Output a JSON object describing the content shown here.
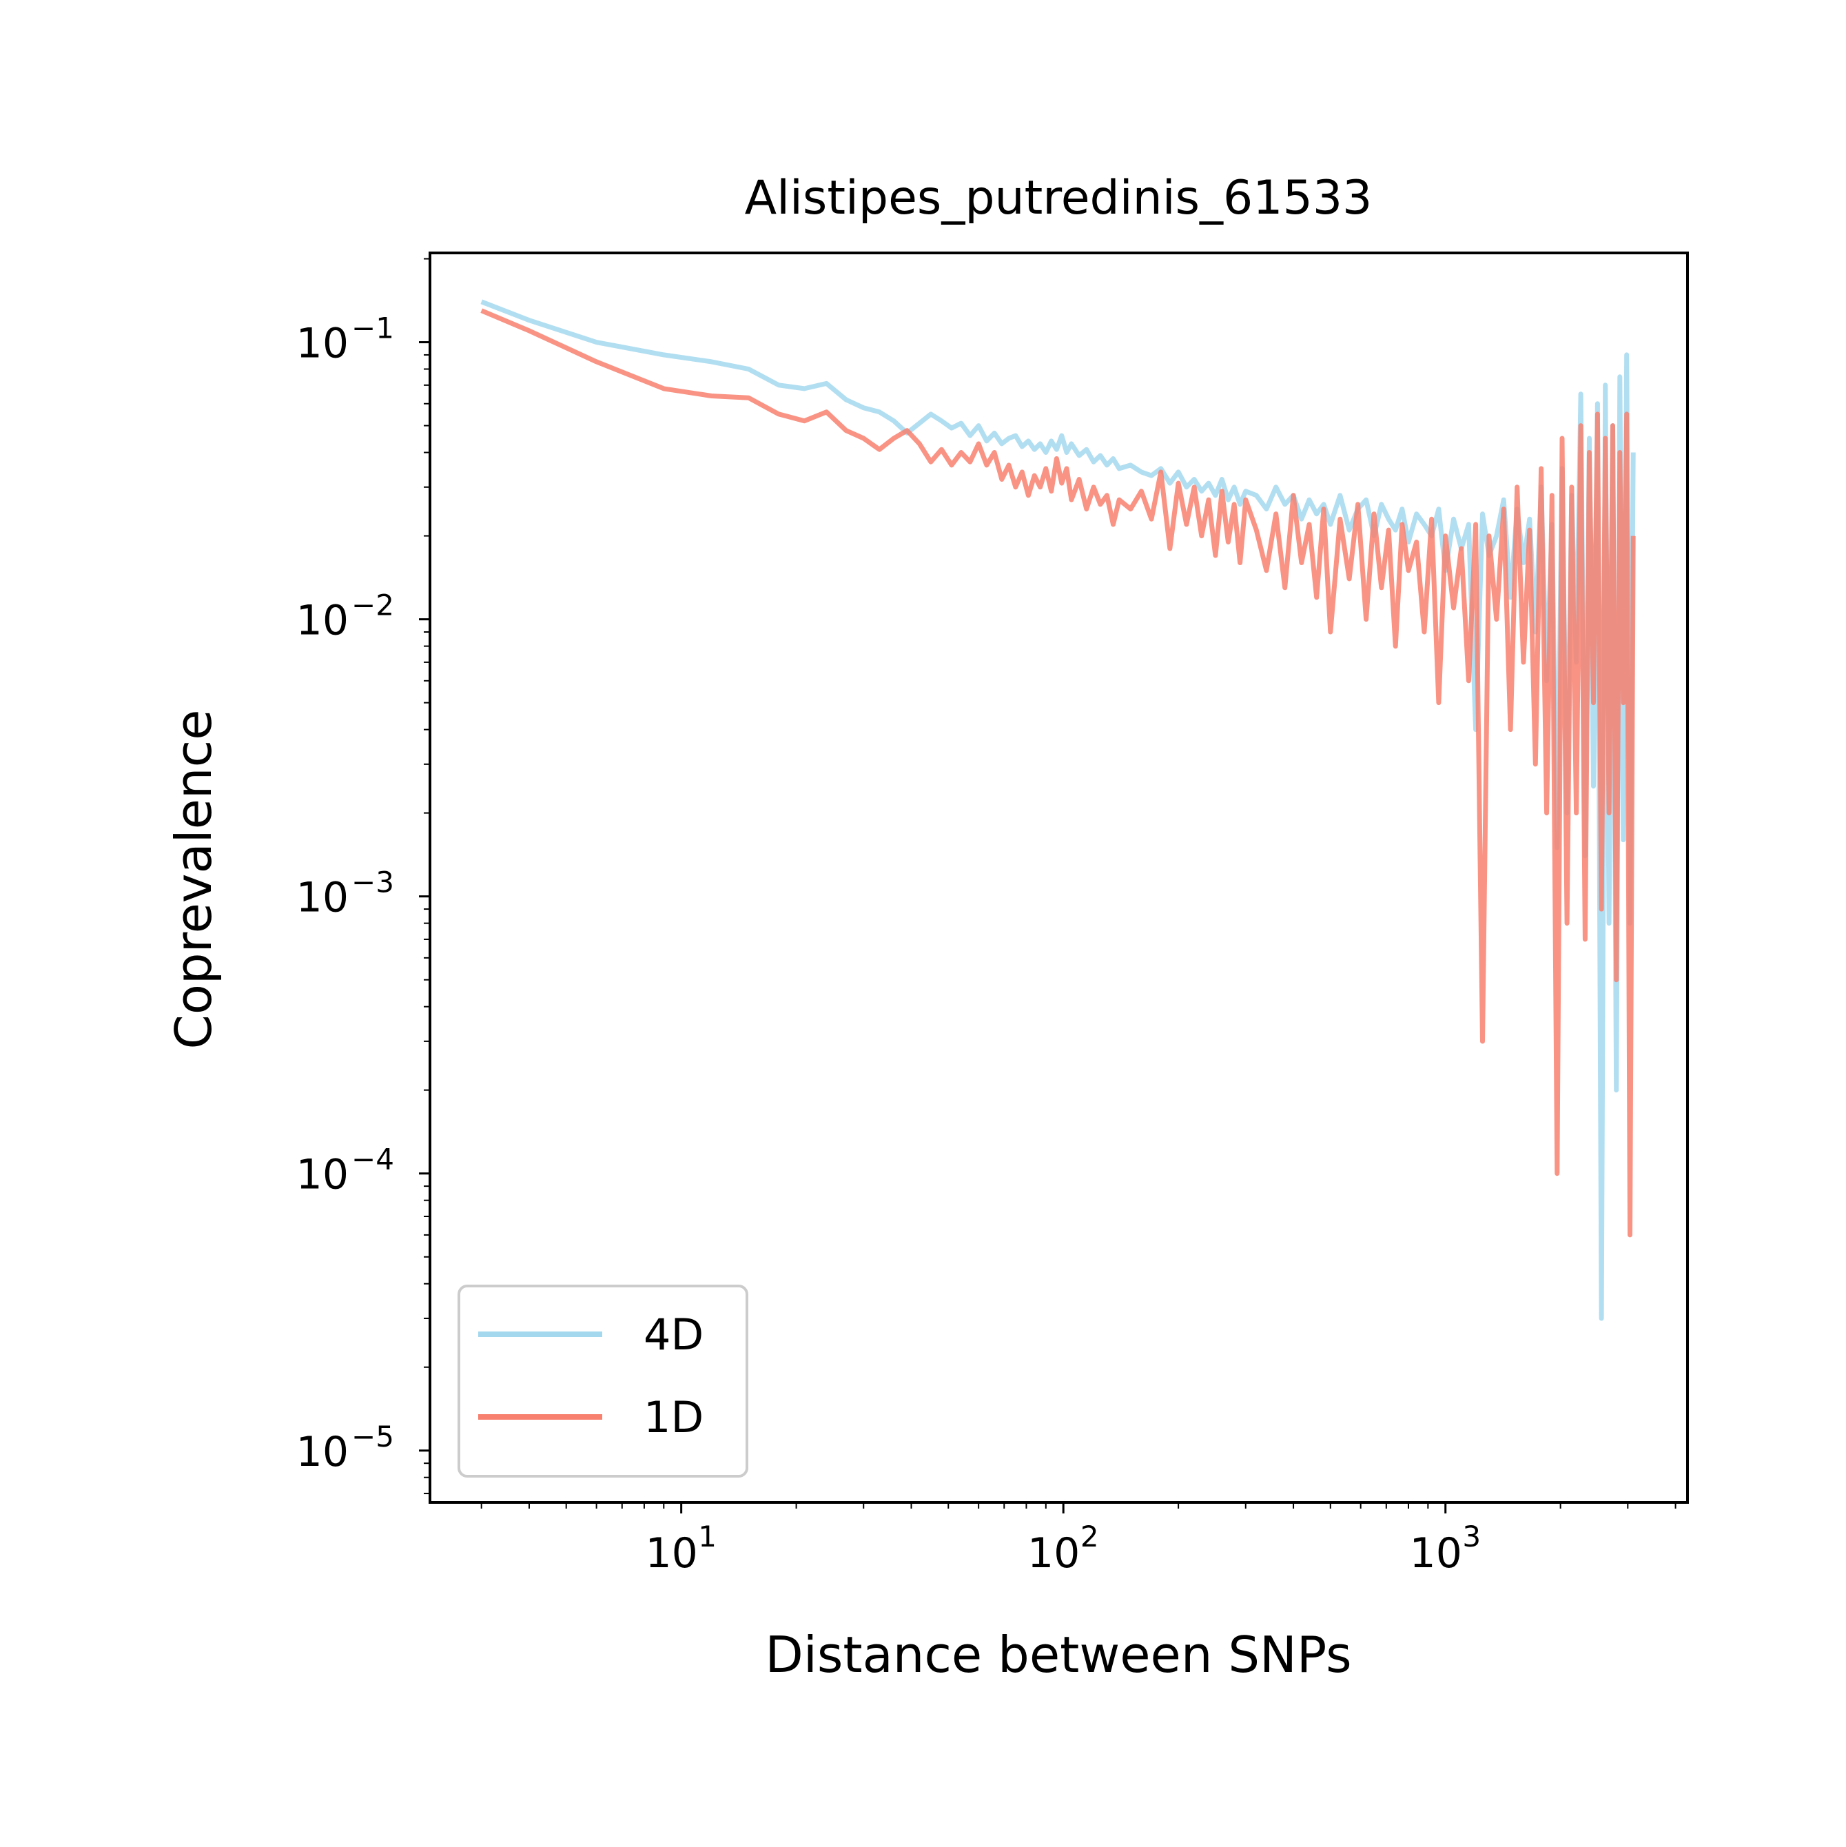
{
  "chart_data": {
    "type": "line",
    "title": "Alistipes_putredinis_61533",
    "xlabel": "Distance between SNPs",
    "ylabel": "Coprevalence",
    "xscale": "log",
    "yscale": "log",
    "xlim": [
      2.2,
      4300
    ],
    "ylim": [
      6.5e-06,
      0.21
    ],
    "x_ticks": [
      {
        "value": 10,
        "base": "10",
        "exp": "1"
      },
      {
        "value": 100,
        "base": "10",
        "exp": "2"
      },
      {
        "value": 1000,
        "base": "10",
        "exp": "3"
      }
    ],
    "y_ticks": [
      {
        "value": 0.1,
        "base": "10",
        "exp": "−1"
      },
      {
        "value": 0.01,
        "base": "10",
        "exp": "−2"
      },
      {
        "value": 0.001,
        "base": "10",
        "exp": "−3"
      },
      {
        "value": 0.0001,
        "base": "10",
        "exp": "−4"
      },
      {
        "value": 1e-05,
        "base": "10",
        "exp": "−5"
      }
    ],
    "grid": false,
    "legend_position": "lower-left",
    "series": [
      {
        "name": "4D",
        "color": "#a3d8ee",
        "x": [
          3,
          4,
          6,
          9,
          12,
          15,
          18,
          21,
          24,
          27,
          30,
          33,
          36,
          39,
          42,
          45,
          48,
          51,
          54,
          57,
          60,
          63,
          66,
          69,
          72,
          75,
          78,
          81,
          84,
          87,
          90,
          93,
          96,
          99,
          102,
          105,
          110,
          115,
          120,
          125,
          130,
          135,
          140,
          150,
          160,
          170,
          180,
          190,
          200,
          210,
          220,
          230,
          240,
          250,
          260,
          270,
          280,
          290,
          300,
          320,
          340,
          360,
          380,
          400,
          420,
          440,
          460,
          480,
          500,
          530,
          560,
          590,
          620,
          650,
          680,
          710,
          740,
          770,
          800,
          840,
          880,
          920,
          960,
          1000,
          1050,
          1100,
          1150,
          1200,
          1250,
          1300,
          1360,
          1420,
          1480,
          1540,
          1600,
          1660,
          1720,
          1780,
          1840,
          1900,
          1960,
          2020,
          2080,
          2140,
          2200,
          2260,
          2320,
          2380,
          2440,
          2500,
          2560,
          2620,
          2680,
          2740,
          2800,
          2860,
          2920,
          2980,
          3040,
          3100
        ],
        "y": [
          0.14,
          0.12,
          0.1,
          0.09,
          0.085,
          0.08,
          0.07,
          0.068,
          0.071,
          0.062,
          0.058,
          0.056,
          0.052,
          0.047,
          0.051,
          0.055,
          0.052,
          0.049,
          0.051,
          0.046,
          0.05,
          0.044,
          0.047,
          0.043,
          0.045,
          0.046,
          0.042,
          0.044,
          0.041,
          0.043,
          0.04,
          0.044,
          0.041,
          0.046,
          0.04,
          0.043,
          0.039,
          0.041,
          0.037,
          0.039,
          0.036,
          0.038,
          0.035,
          0.036,
          0.034,
          0.033,
          0.035,
          0.031,
          0.034,
          0.03,
          0.032,
          0.029,
          0.031,
          0.028,
          0.032,
          0.027,
          0.03,
          0.026,
          0.029,
          0.028,
          0.025,
          0.03,
          0.026,
          0.028,
          0.023,
          0.027,
          0.024,
          0.026,
          0.022,
          0.028,
          0.021,
          0.025,
          0.027,
          0.02,
          0.026,
          0.023,
          0.021,
          0.025,
          0.019,
          0.024,
          0.022,
          0.02,
          0.025,
          0.015,
          0.023,
          0.018,
          0.022,
          0.004,
          0.024,
          0.017,
          0.02,
          0.027,
          0.012,
          0.025,
          0.016,
          0.023,
          0.009,
          0.03,
          0.006,
          0.022,
          0.0015,
          0.035,
          0.002,
          0.028,
          0.007,
          0.065,
          0.0014,
          0.045,
          0.0025,
          0.06,
          3e-05,
          0.07,
          0.0008,
          0.05,
          0.0002,
          0.075,
          0.0016,
          0.09,
          0.0008,
          0.04
        ]
      },
      {
        "name": "1D",
        "color": "#f8806e",
        "x": [
          3,
          4,
          6,
          9,
          12,
          15,
          18,
          21,
          24,
          27,
          30,
          33,
          36,
          39,
          42,
          45,
          48,
          51,
          54,
          57,
          60,
          63,
          66,
          69,
          72,
          75,
          78,
          81,
          84,
          87,
          90,
          93,
          96,
          99,
          102,
          105,
          110,
          115,
          120,
          125,
          130,
          135,
          140,
          150,
          160,
          170,
          180,
          190,
          200,
          210,
          220,
          230,
          240,
          250,
          260,
          270,
          280,
          290,
          300,
          320,
          340,
          360,
          380,
          400,
          420,
          440,
          460,
          480,
          500,
          530,
          560,
          590,
          620,
          650,
          680,
          710,
          740,
          770,
          800,
          840,
          880,
          920,
          960,
          1000,
          1050,
          1100,
          1150,
          1200,
          1250,
          1300,
          1360,
          1420,
          1480,
          1540,
          1600,
          1660,
          1720,
          1780,
          1840,
          1900,
          1960,
          2020,
          2080,
          2140,
          2200,
          2260,
          2320,
          2380,
          2440,
          2500,
          2560,
          2620,
          2680,
          2740,
          2800,
          2860,
          2920,
          2980,
          3040,
          3100
        ],
        "y": [
          0.13,
          0.11,
          0.085,
          0.068,
          0.064,
          0.063,
          0.055,
          0.052,
          0.056,
          0.048,
          0.045,
          0.041,
          0.045,
          0.048,
          0.043,
          0.037,
          0.041,
          0.036,
          0.04,
          0.037,
          0.043,
          0.036,
          0.04,
          0.032,
          0.036,
          0.03,
          0.034,
          0.028,
          0.033,
          0.03,
          0.035,
          0.029,
          0.038,
          0.031,
          0.035,
          0.027,
          0.032,
          0.025,
          0.03,
          0.026,
          0.028,
          0.022,
          0.027,
          0.025,
          0.029,
          0.023,
          0.034,
          0.018,
          0.031,
          0.022,
          0.03,
          0.02,
          0.027,
          0.017,
          0.029,
          0.019,
          0.026,
          0.016,
          0.027,
          0.021,
          0.015,
          0.024,
          0.013,
          0.028,
          0.016,
          0.022,
          0.012,
          0.025,
          0.009,
          0.023,
          0.014,
          0.026,
          0.01,
          0.024,
          0.013,
          0.021,
          0.008,
          0.022,
          0.015,
          0.019,
          0.009,
          0.023,
          0.005,
          0.02,
          0.011,
          0.018,
          0.006,
          0.022,
          0.0003,
          0.02,
          0.01,
          0.025,
          0.004,
          0.03,
          0.007,
          0.021,
          0.003,
          0.035,
          0.002,
          0.028,
          0.0001,
          0.045,
          0.0008,
          0.03,
          0.002,
          0.05,
          0.0007,
          0.04,
          0.005,
          0.055,
          0.0009,
          0.045,
          0.002,
          0.05,
          0.0005,
          0.04,
          0.005,
          0.055,
          6e-05,
          0.02
        ]
      }
    ]
  }
}
